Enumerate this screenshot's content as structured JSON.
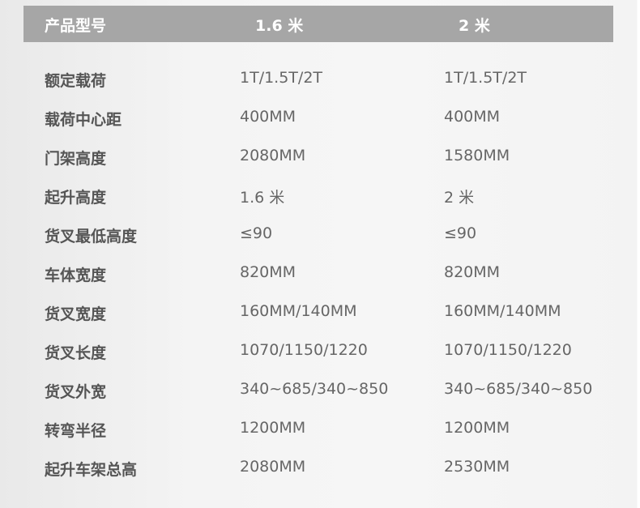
{
  "header": {
    "label": "产品型号",
    "col1": "1.6 米",
    "col2": "2 米"
  },
  "rows": [
    {
      "label": "额定载荷",
      "v1": "1T/1.5T/2T",
      "v2": "1T/1.5T/2T"
    },
    {
      "label": "载荷中心距",
      "v1": "400MM",
      "v2": "400MM"
    },
    {
      "label": "门架高度",
      "v1": "2080MM",
      "v2": "1580MM"
    },
    {
      "label": "起升高度",
      "v1": "1.6 米",
      "v2": "2 米"
    },
    {
      "label": "货叉最低高度",
      "v1": "≤90",
      "v2": "≤90"
    },
    {
      "label": "车体宽度",
      "v1": "820MM",
      "v2": "820MM"
    },
    {
      "label": "货叉宽度",
      "v1": "160MM/140MM",
      "v2": "160MM/140MM"
    },
    {
      "label": "货叉长度",
      "v1": "1070/1150/1220",
      "v2": "1070/1150/1220"
    },
    {
      "label": "货叉外宽",
      "v1": "340~685/340~850",
      "v2": "340~685/340~850"
    },
    {
      "label": "转弯半径",
      "v1": "1200MM",
      "v2": "1200MM"
    },
    {
      "label": "起升车架总高",
      "v1": "2080MM",
      "v2": "2530MM"
    }
  ]
}
